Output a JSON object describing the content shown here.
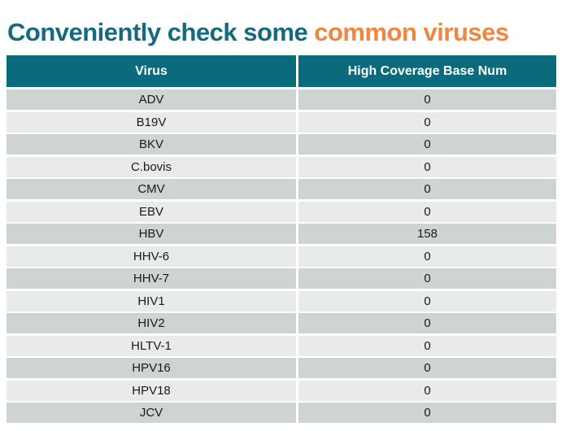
{
  "title": {
    "prefix": "Conveniently check some",
    "highlight": "common viruses"
  },
  "colors": {
    "title_teal": "#156a80",
    "title_orange": "#f0863f",
    "header_bg": "#0a6b7c",
    "row_dark": "#ced3d4",
    "row_light": "#e8eaeb"
  },
  "chart_data": {
    "type": "table",
    "title": "Conveniently check some common viruses",
    "columns": [
      "Virus",
      "High Coverage Base Num"
    ],
    "rows": [
      [
        "ADV",
        0
      ],
      [
        "B19V",
        0
      ],
      [
        "BKV",
        0
      ],
      [
        "C.bovis",
        0
      ],
      [
        "CMV",
        0
      ],
      [
        "EBV",
        0
      ],
      [
        "HBV",
        158
      ],
      [
        "HHV-6",
        0
      ],
      [
        "HHV-7",
        0
      ],
      [
        "HIV1",
        0
      ],
      [
        "HIV2",
        0
      ],
      [
        "HLTV-1",
        0
      ],
      [
        "HPV16",
        0
      ],
      [
        "HPV18",
        0
      ],
      [
        "JCV",
        0
      ]
    ]
  }
}
